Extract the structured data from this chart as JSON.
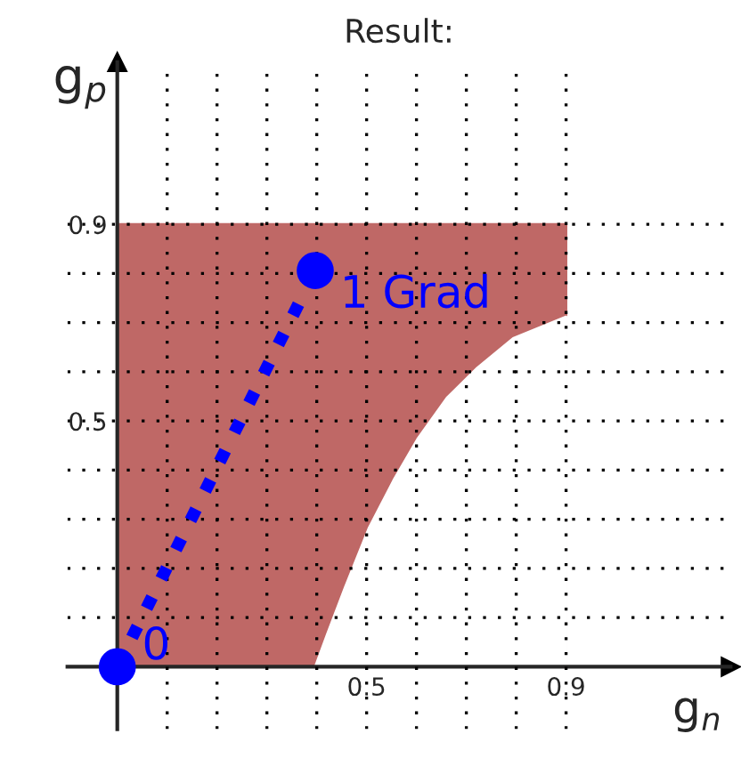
{
  "chart_data": {
    "type": "line",
    "title": "Result:",
    "xlabel": "g$_{n}$",
    "ylabel": "g$_{p}$",
    "xlim": [
      -0.1,
      1.23
    ],
    "ylim": [
      -0.127,
      1.23
    ],
    "xticks": [
      {
        "value": 0.1,
        "label": null
      },
      {
        "value": 0.2,
        "label": null
      },
      {
        "value": 0.3,
        "label": null
      },
      {
        "value": 0.4,
        "label": null
      },
      0.5,
      {
        "value": 0.6,
        "label": null
      },
      {
        "value": 0.7,
        "label": null
      },
      {
        "value": 0.8,
        "label": null
      },
      0.9
    ],
    "yticks": [
      {
        "value": 0.1,
        "label": null
      },
      {
        "value": 0.2,
        "label": null
      },
      {
        "value": 0.3,
        "label": null
      },
      {
        "value": 0.4,
        "label": null
      },
      0.5,
      {
        "value": 0.6,
        "label": null
      },
      {
        "value": 0.7,
        "label": null
      },
      {
        "value": 0.8,
        "label": null
      },
      0.9
    ],
    "grid": true,
    "series": [
      {
        "type": "area",
        "color": "#bf6866",
        "x": [
          0,
          0.9
        ],
        "values": [
          0.9,
          0.9
        ]
      },
      {
        "type": "area",
        "color": "#ffffff",
        "x": [
          0.397,
          0.421,
          0.457,
          0.505,
          0.554,
          0.602,
          0.662,
          0.722,
          0.794,
          0.9
        ],
        "values": [
          0,
          0.066,
          0.162,
          0.283,
          0.379,
          0.463,
          0.548,
          0.608,
          0.668,
          0.712
        ]
      },
      {
        "type": "line",
        "color": "#0000ff",
        "x": [
          0,
          0.397
        ],
        "values": [
          0,
          0.806
        ],
        "marker": "circle",
        "line_style": "dotted"
      }
    ],
    "annotations": [
      {
        "text": "0",
        "x": 0,
        "y": 0
      },
      {
        "text": "1 Grad",
        "x": 0.397,
        "y": 0.806
      }
    ]
  }
}
